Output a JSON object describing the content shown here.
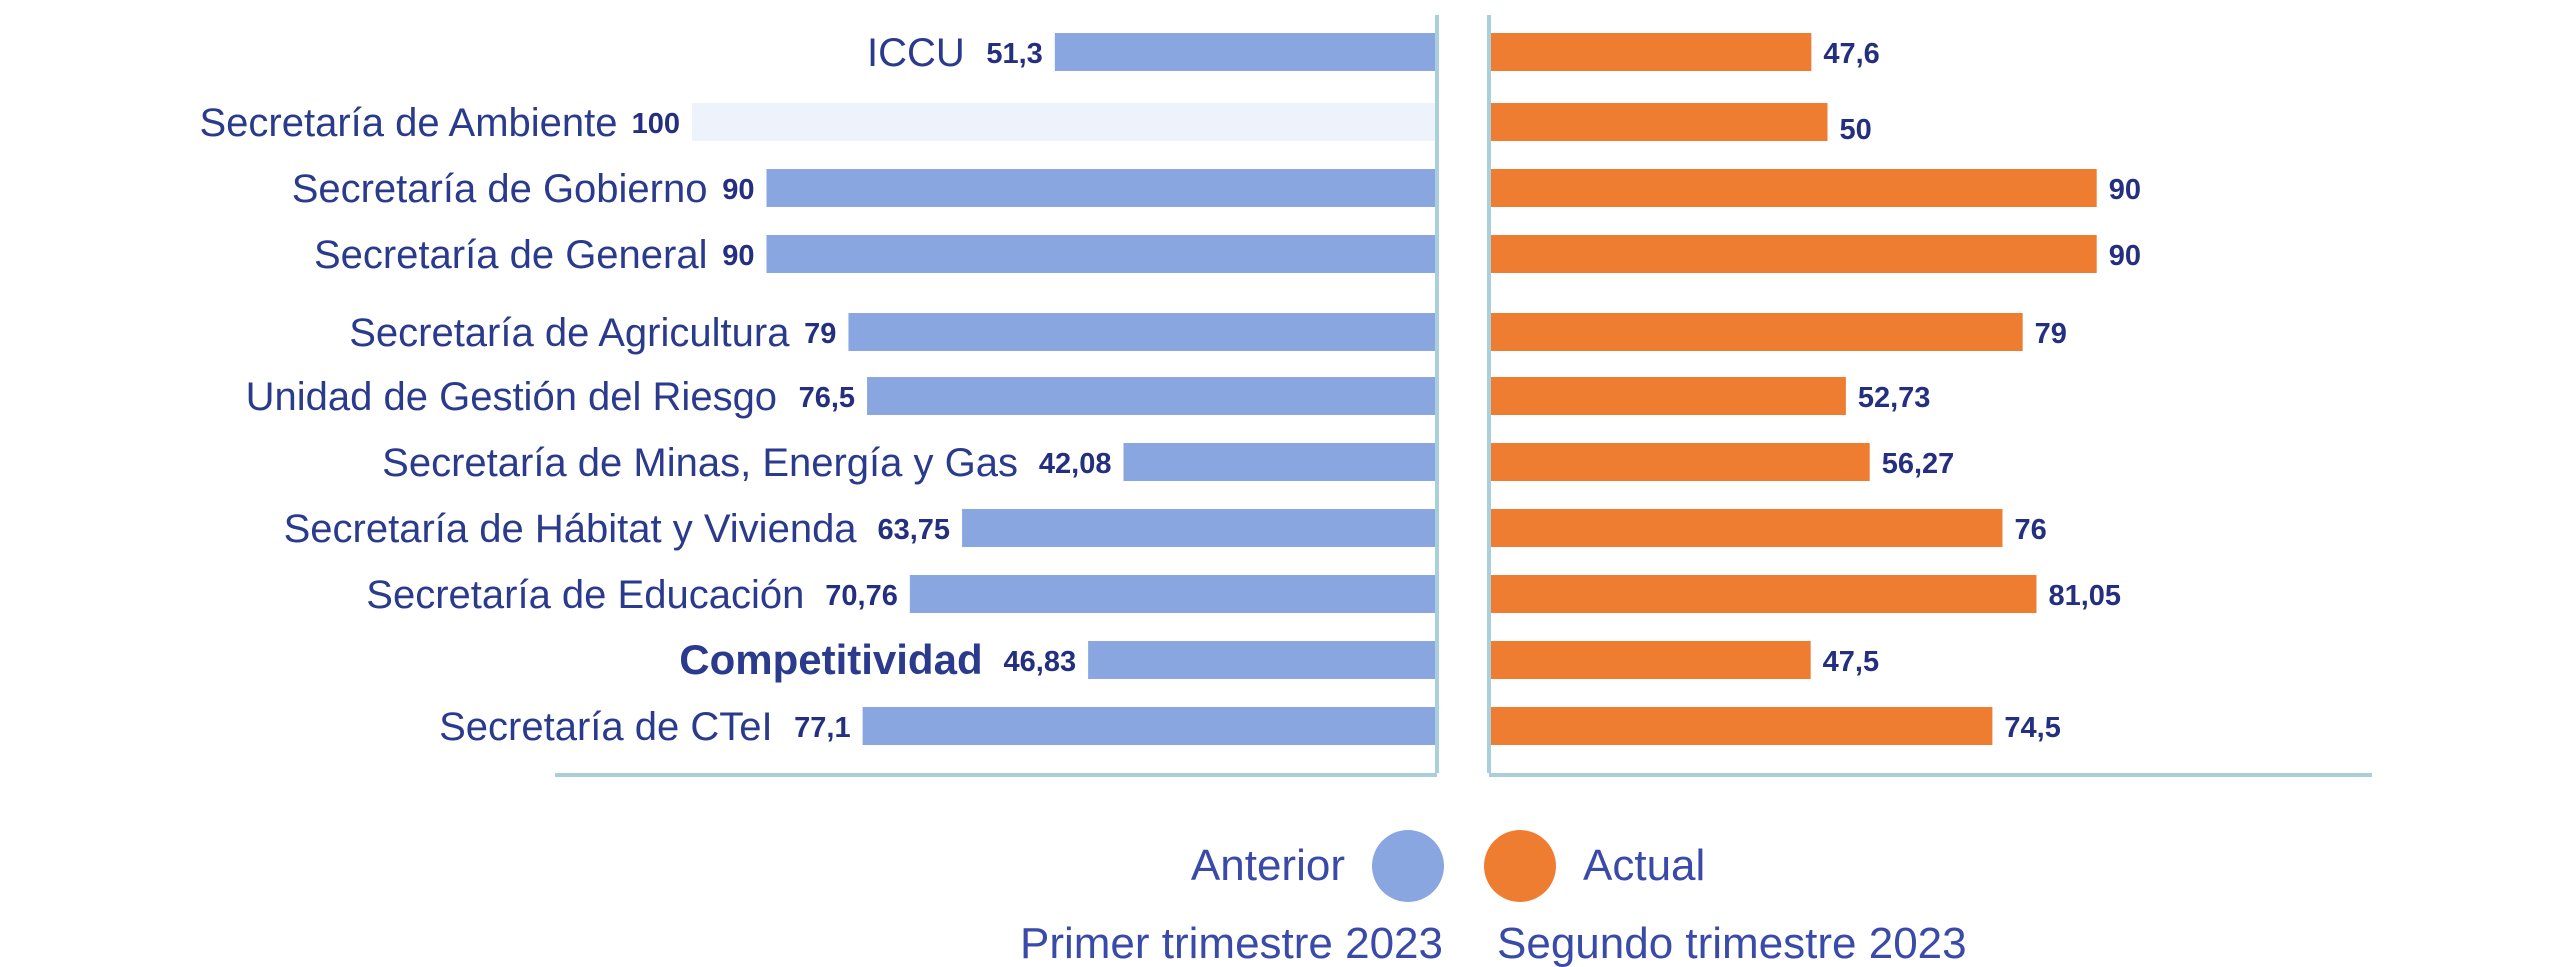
{
  "colors": {
    "anterior": "#8aa6e0",
    "actual": "#ee7d31",
    "axis": "#a9cfdc",
    "text": "#2a3a8c",
    "value_text": "#24307f",
    "ghost_bar": "#eef2fb"
  },
  "chart_data": {
    "type": "bar",
    "orientation": "horizontal",
    "layout": "back-to-back",
    "categories": [
      "ICCU",
      "Secretaría de Ambiente",
      "Secretaría de Gobierno",
      "Secretaría de General",
      "Secretaría de Agricultura",
      "Unidad de Gestión del Riesgo",
      "Secretaría de Minas, Energía y Gas",
      "Secretaría de Hábitat y Vivienda",
      "Secretaría de Educación",
      "Competitividad",
      "Secretaría de CTeI"
    ],
    "bold_category": "Competitividad",
    "series": [
      {
        "name": "Anterior",
        "period": "Primer trimestre 2023",
        "values": [
          51.3,
          100,
          90,
          90,
          79,
          76.5,
          42.08,
          63.75,
          70.76,
          46.83,
          77.1
        ],
        "labels": [
          "51,3",
          "100",
          "90",
          "90",
          "79",
          "76,5",
          "42,08",
          "63,75",
          "70,76",
          "46,83",
          "77,1"
        ]
      },
      {
        "name": "Actual",
        "period": "Segundo trimestre 2023",
        "values": [
          47.6,
          50,
          90,
          90,
          79,
          52.73,
          56.27,
          76,
          81.05,
          47.5,
          74.5
        ],
        "labels": [
          "47,6",
          "50",
          "90",
          "90",
          "79",
          "52,73",
          "56,27",
          "76",
          "81,05",
          "47,5",
          "74,5"
        ]
      }
    ],
    "xlim": [
      0,
      100
    ],
    "title": "",
    "xlabel": "",
    "ylabel": ""
  },
  "legend": {
    "anterior_label": "Anterior",
    "actual_label": "Actual",
    "anterior_period": "Primer trimestre 2023",
    "actual_period": "Segundo trimestre 2023"
  }
}
